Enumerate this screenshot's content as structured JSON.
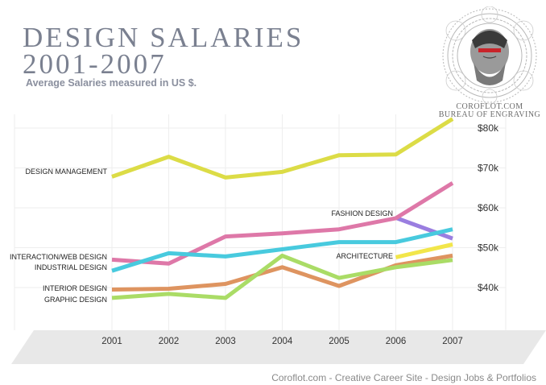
{
  "header": {
    "title_line1": "Design Salaries",
    "title_line2": "2001-2007",
    "subtitle": "Average Salaries measured in US $."
  },
  "seal": {
    "line1": "COROFLOT.COM",
    "line2": "BUREAU OF ENGRAVING",
    "icon": "engraved-portrait-seal"
  },
  "footer": {
    "text": "Coroflot.com - Creative Career Site - Design Jobs & Portfolios"
  },
  "chart_data": {
    "type": "line",
    "title": "Design Salaries 2001-2007",
    "subtitle": "Average Salaries measured in US $.",
    "xlabel": "",
    "ylabel": "",
    "x": [
      2001,
      2002,
      2003,
      2004,
      2005,
      2006,
      2007
    ],
    "x_tick_labels": [
      "2001",
      "2002",
      "2003",
      "2004",
      "2005",
      "2006",
      "2007"
    ],
    "ylim": [
      30000,
      90000
    ],
    "y_ticks": [
      40000,
      50000,
      60000,
      70000,
      80000
    ],
    "y_tick_labels": [
      "$40k",
      "$50k",
      "$60k",
      "$70k",
      "$80k"
    ],
    "grid": true,
    "legend": "inline labels",
    "series": [
      {
        "name": "DESIGN MANAGEMENT",
        "color": "#dcdc46",
        "x": [
          2001,
          2002,
          2003,
          2004,
          2005,
          2006,
          2007
        ],
        "values": [
          67800,
          72800,
          67600,
          69000,
          73200,
          73400,
          82300
        ]
      },
      {
        "name": "FASHION DESIGN",
        "color": "#9a7ee0",
        "x": [
          2006,
          2007
        ],
        "values": [
          57500,
          52300
        ]
      },
      {
        "name": "INTERACTION/WEB DESIGN",
        "color": "#de78a8",
        "x": [
          2001,
          2002,
          2003,
          2004,
          2005,
          2006,
          2007
        ],
        "values": [
          47000,
          46000,
          52800,
          53600,
          54600,
          57400,
          66200
        ]
      },
      {
        "name": "INDUSTRIAL DESIGN",
        "color": "#48cade",
        "x": [
          2001,
          2002,
          2003,
          2004,
          2005,
          2006,
          2007
        ],
        "values": [
          44200,
          48600,
          47800,
          49600,
          51400,
          51400,
          54600
        ]
      },
      {
        "name": "ARCHITECTURE",
        "color": "#f2e64a",
        "x": [
          2006,
          2007
        ],
        "values": [
          47600,
          50800
        ]
      },
      {
        "name": "INTERIOR DESIGN",
        "color": "#de9460",
        "x": [
          2001,
          2002,
          2003,
          2004,
          2005,
          2006,
          2007
        ],
        "values": [
          39500,
          39700,
          40900,
          45100,
          40400,
          45600,
          48000
        ]
      },
      {
        "name": "GRAPHIC DESIGN",
        "color": "#aadc66",
        "x": [
          2001,
          2002,
          2003,
          2004,
          2005,
          2006,
          2007
        ],
        "values": [
          37400,
          38400,
          37400,
          48000,
          42400,
          45100,
          46900
        ]
      }
    ]
  }
}
